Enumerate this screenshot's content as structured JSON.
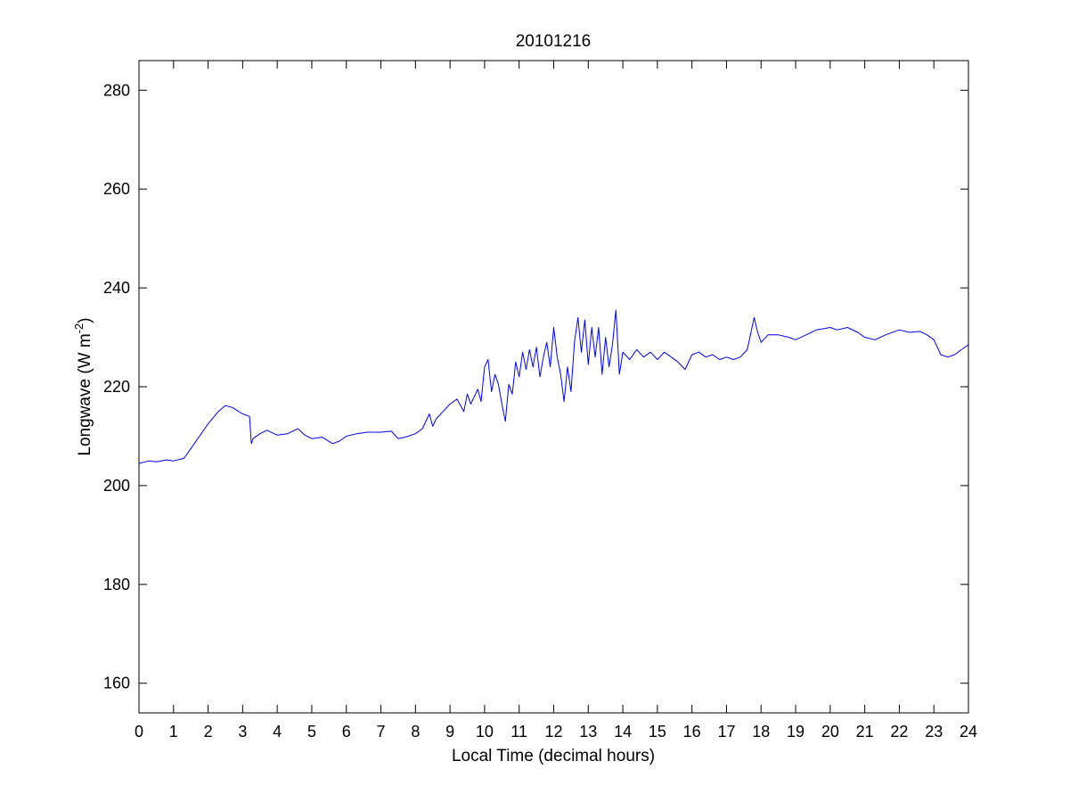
{
  "chart_data": {
    "type": "line",
    "title": "20101216",
    "xlabel": "Local Time (decimal hours)",
    "ylabel": {
      "main": "Longwave (W m",
      "sup": "-2",
      "close": ")"
    },
    "xlim": [
      0,
      24
    ],
    "ylim": [
      154,
      286
    ],
    "xticks": [
      0,
      1,
      2,
      3,
      4,
      5,
      6,
      7,
      8,
      9,
      10,
      11,
      12,
      13,
      14,
      15,
      16,
      17,
      18,
      19,
      20,
      21,
      22,
      23,
      24
    ],
    "yticks": [
      160,
      180,
      200,
      220,
      240,
      260,
      280
    ],
    "grid": false,
    "legend": "none",
    "series": [
      {
        "color": "#0000ff",
        "x": [
          0,
          0.3,
          0.5,
          0.8,
          1.0,
          1.3,
          1.6,
          2.0,
          2.3,
          2.5,
          2.7,
          3.0,
          3.2,
          3.25,
          3.3,
          3.5,
          3.7,
          4.0,
          4.3,
          4.6,
          4.8,
          5.0,
          5.3,
          5.6,
          5.8,
          6.0,
          6.3,
          6.6,
          7.0,
          7.3,
          7.5,
          7.7,
          8.0,
          8.2,
          8.4,
          8.5,
          8.6,
          8.8,
          9.0,
          9.2,
          9.4,
          9.5,
          9.6,
          9.8,
          9.9,
          10.0,
          10.1,
          10.2,
          10.3,
          10.4,
          10.5,
          10.6,
          10.7,
          10.8,
          10.9,
          11.0,
          11.1,
          11.2,
          11.3,
          11.4,
          11.5,
          11.6,
          11.7,
          11.8,
          11.9,
          12.0,
          12.1,
          12.2,
          12.3,
          12.4,
          12.5,
          12.6,
          12.7,
          12.8,
          12.9,
          13.0,
          13.1,
          13.2,
          13.3,
          13.4,
          13.5,
          13.6,
          13.7,
          13.8,
          13.9,
          14.0,
          14.2,
          14.4,
          14.6,
          14.8,
          15.0,
          15.2,
          15.4,
          15.6,
          15.8,
          16.0,
          16.2,
          16.4,
          16.6,
          16.8,
          17.0,
          17.2,
          17.4,
          17.6,
          17.8,
          17.9,
          18.0,
          18.2,
          18.5,
          18.8,
          19.0,
          19.3,
          19.6,
          20.0,
          20.2,
          20.5,
          20.8,
          21.0,
          21.3,
          21.6,
          22.0,
          22.3,
          22.6,
          22.8,
          23.0,
          23.2,
          23.4,
          23.6,
          23.8,
          24.0
        ],
        "y": [
          204.5,
          205.0,
          204.8,
          205.2,
          205.0,
          205.5,
          208.5,
          212.5,
          215.0,
          216.2,
          215.8,
          214.5,
          214.0,
          208.5,
          209.5,
          210.5,
          211.2,
          210.2,
          210.5,
          211.5,
          210.2,
          209.5,
          209.8,
          208.5,
          209.0,
          210.0,
          210.5,
          210.8,
          210.8,
          211.0,
          209.5,
          209.8,
          210.5,
          211.5,
          214.5,
          212.0,
          213.5,
          215.0,
          216.5,
          217.5,
          215.0,
          218.5,
          216.5,
          219.5,
          217.0,
          224.0,
          225.5,
          219.0,
          222.5,
          220.5,
          216.5,
          213.0,
          220.5,
          218.5,
          225.0,
          222.0,
          227.0,
          223.5,
          227.5,
          224.0,
          228.0,
          222.0,
          226.0,
          229.0,
          224.0,
          232.0,
          226.0,
          222.5,
          217.0,
          224.0,
          219.0,
          229.0,
          234.0,
          227.0,
          233.5,
          224.5,
          232.0,
          226.0,
          232.0,
          222.5,
          230.0,
          224.0,
          228.5,
          235.5,
          222.5,
          227.0,
          225.5,
          227.5,
          226.0,
          227.0,
          225.5,
          227.0,
          226.0,
          225.0,
          223.5,
          226.5,
          227.0,
          226.0,
          226.5,
          225.5,
          226.0,
          225.5,
          226.0,
          227.5,
          234.0,
          231.0,
          229.0,
          230.5,
          230.5,
          230.0,
          229.5,
          230.5,
          231.5,
          232.0,
          231.5,
          232.0,
          231.0,
          230.0,
          229.5,
          230.5,
          231.5,
          231.0,
          231.2,
          230.5,
          229.5,
          226.5,
          226.0,
          226.5,
          227.5,
          228.5
        ]
      }
    ]
  }
}
